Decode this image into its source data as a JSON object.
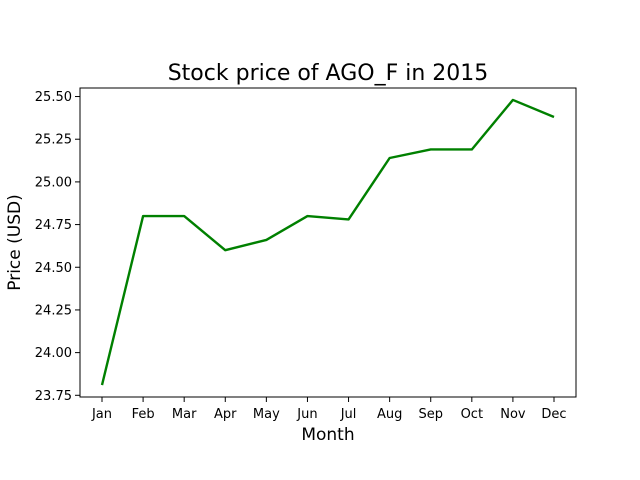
{
  "chart_data": {
    "type": "line",
    "title": "Stock price of AGO_F in 2015",
    "xlabel": "Month",
    "ylabel": "Price (USD)",
    "categories": [
      "Jan",
      "Feb",
      "Mar",
      "Apr",
      "May",
      "Jun",
      "Jul",
      "Aug",
      "Sep",
      "Oct",
      "Nov",
      "Dec"
    ],
    "series": [
      {
        "values": [
          23.81,
          24.8,
          24.8,
          24.6,
          24.66,
          24.8,
          24.78,
          25.14,
          25.19,
          25.19,
          25.48,
          25.38
        ],
        "color": "#008000"
      }
    ],
    "yticks": [
      "23.75",
      "24.00",
      "24.25",
      "24.50",
      "24.75",
      "25.00",
      "25.25",
      "25.50"
    ],
    "ylim": [
      23.74,
      25.55
    ],
    "grid": false,
    "legend": false
  }
}
